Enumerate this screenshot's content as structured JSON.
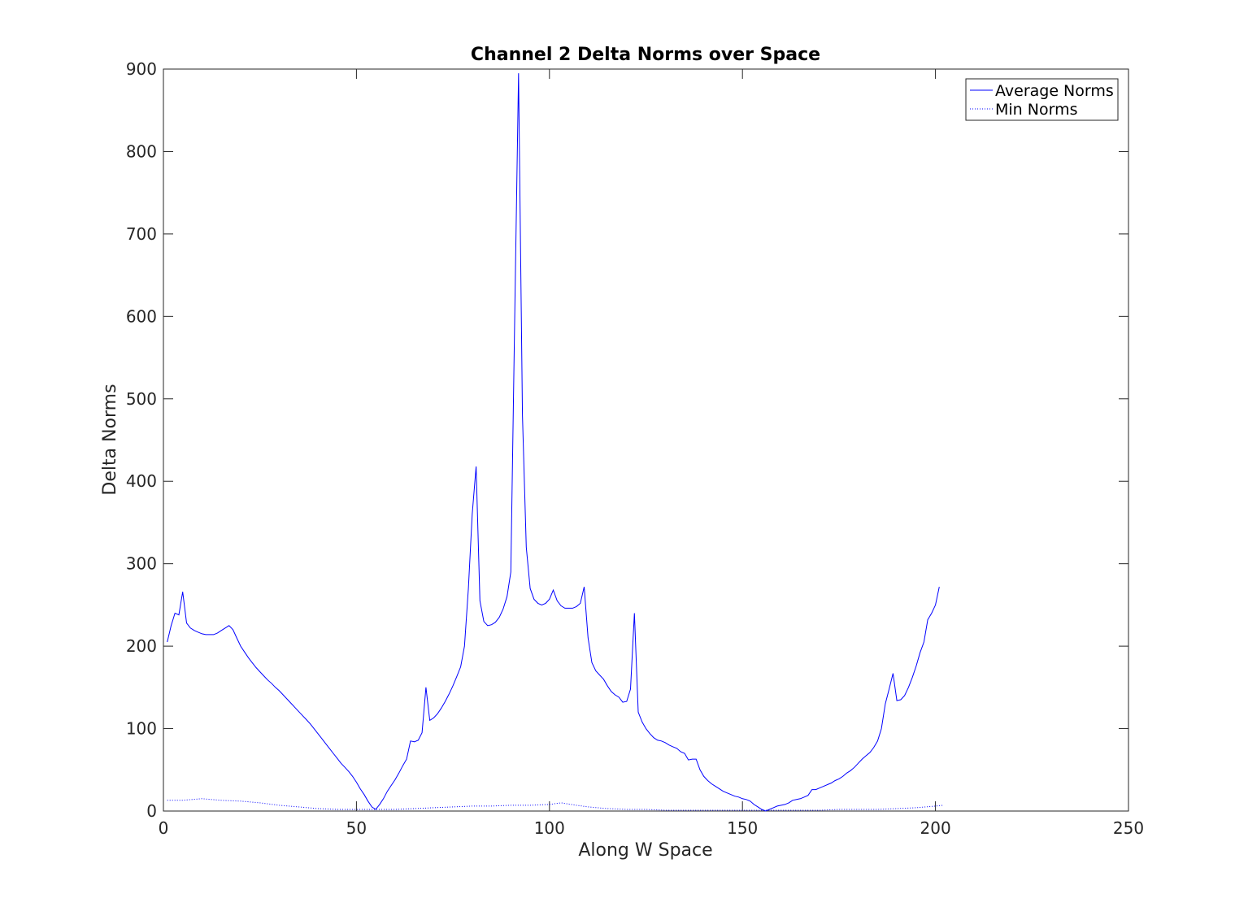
{
  "chart_data": {
    "type": "line",
    "title": "Channel 2 Delta Norms over Space",
    "xlabel": "Along W Space",
    "ylabel": "Delta Norms",
    "xlim": [
      0,
      250
    ],
    "ylim": [
      0,
      900
    ],
    "xticks": [
      0,
      50,
      100,
      150,
      200,
      250
    ],
    "yticks": [
      0,
      100,
      200,
      300,
      400,
      500,
      600,
      700,
      800,
      900
    ],
    "grid": false,
    "legend_position": "top-right",
    "series": [
      {
        "name": "Average Norms",
        "color": "#0000ff",
        "style": "solid",
        "points": [
          [
            1,
            205
          ],
          [
            2,
            225
          ],
          [
            3,
            240
          ],
          [
            4,
            238
          ],
          [
            5,
            266
          ],
          [
            6,
            228
          ],
          [
            7,
            222
          ],
          [
            8,
            219
          ],
          [
            9,
            217
          ],
          [
            10,
            215
          ],
          [
            11,
            214
          ],
          [
            12,
            214
          ],
          [
            13,
            214
          ],
          [
            14,
            216
          ],
          [
            15,
            219
          ],
          [
            16,
            222
          ],
          [
            17,
            225
          ],
          [
            18,
            220
          ],
          [
            19,
            210
          ],
          [
            20,
            200
          ],
          [
            21,
            193
          ],
          [
            22,
            186
          ],
          [
            23,
            180
          ],
          [
            24,
            174
          ],
          [
            25,
            169
          ],
          [
            26,
            164
          ],
          [
            27,
            159
          ],
          [
            28,
            155
          ],
          [
            29,
            150
          ],
          [
            30,
            146
          ],
          [
            31,
            141
          ],
          [
            32,
            136
          ],
          [
            33,
            131
          ],
          [
            34,
            126
          ],
          [
            35,
            121
          ],
          [
            36,
            116
          ],
          [
            37,
            111
          ],
          [
            38,
            106
          ],
          [
            39,
            100
          ],
          [
            40,
            94
          ],
          [
            41,
            88
          ],
          [
            42,
            82
          ],
          [
            43,
            76
          ],
          [
            44,
            70
          ],
          [
            45,
            64
          ],
          [
            46,
            58
          ],
          [
            47,
            53
          ],
          [
            48,
            48
          ],
          [
            49,
            42
          ],
          [
            50,
            35
          ],
          [
            51,
            27
          ],
          [
            52,
            20
          ],
          [
            53,
            12
          ],
          [
            54,
            5
          ],
          [
            55,
            2
          ],
          [
            56,
            8
          ],
          [
            57,
            15
          ],
          [
            58,
            24
          ],
          [
            59,
            31
          ],
          [
            60,
            38
          ],
          [
            61,
            46
          ],
          [
            62,
            55
          ],
          [
            63,
            63
          ],
          [
            64,
            85
          ],
          [
            65,
            84
          ],
          [
            66,
            86
          ],
          [
            67,
            95
          ],
          [
            68,
            150
          ],
          [
            69,
            110
          ],
          [
            70,
            113
          ],
          [
            71,
            118
          ],
          [
            72,
            125
          ],
          [
            73,
            133
          ],
          [
            74,
            142
          ],
          [
            75,
            152
          ],
          [
            76,
            163
          ],
          [
            77,
            175
          ],
          [
            78,
            200
          ],
          [
            79,
            270
          ],
          [
            80,
            360
          ],
          [
            81,
            418
          ],
          [
            82,
            255
          ],
          [
            83,
            230
          ],
          [
            84,
            225
          ],
          [
            85,
            226
          ],
          [
            86,
            229
          ],
          [
            87,
            235
          ],
          [
            88,
            245
          ],
          [
            89,
            260
          ],
          [
            90,
            290
          ],
          [
            91,
            600
          ],
          [
            92,
            895
          ],
          [
            93,
            480
          ],
          [
            94,
            320
          ],
          [
            95,
            270
          ],
          [
            96,
            257
          ],
          [
            97,
            252
          ],
          [
            98,
            250
          ],
          [
            99,
            252
          ],
          [
            100,
            257
          ],
          [
            101,
            268
          ],
          [
            102,
            255
          ],
          [
            103,
            249
          ],
          [
            104,
            246
          ],
          [
            105,
            246
          ],
          [
            106,
            246
          ],
          [
            107,
            248
          ],
          [
            108,
            252
          ],
          [
            109,
            272
          ],
          [
            110,
            210
          ],
          [
            111,
            180
          ],
          [
            112,
            170
          ],
          [
            113,
            165
          ],
          [
            114,
            160
          ],
          [
            115,
            152
          ],
          [
            116,
            145
          ],
          [
            117,
            141
          ],
          [
            118,
            138
          ],
          [
            119,
            132
          ],
          [
            120,
            133
          ],
          [
            121,
            148
          ],
          [
            122,
            240
          ],
          [
            123,
            120
          ],
          [
            124,
            108
          ],
          [
            125,
            100
          ],
          [
            126,
            94
          ],
          [
            127,
            89
          ],
          [
            128,
            86
          ],
          [
            129,
            85
          ],
          [
            130,
            83
          ],
          [
            131,
            80
          ],
          [
            132,
            78
          ],
          [
            133,
            76
          ],
          [
            134,
            72
          ],
          [
            135,
            70
          ],
          [
            136,
            62
          ],
          [
            137,
            63
          ],
          [
            138,
            63
          ],
          [
            139,
            50
          ],
          [
            140,
            42
          ],
          [
            141,
            37
          ],
          [
            142,
            33
          ],
          [
            143,
            30
          ],
          [
            144,
            27
          ],
          [
            145,
            24
          ],
          [
            146,
            22
          ],
          [
            147,
            20
          ],
          [
            148,
            18
          ],
          [
            149,
            17
          ],
          [
            150,
            15
          ],
          [
            151,
            14
          ],
          [
            152,
            12
          ],
          [
            153,
            8
          ],
          [
            154,
            5
          ],
          [
            155,
            2
          ],
          [
            156,
            0
          ],
          [
            157,
            2
          ],
          [
            158,
            4
          ],
          [
            159,
            6
          ],
          [
            160,
            7
          ],
          [
            161,
            8
          ],
          [
            162,
            10
          ],
          [
            163,
            13
          ],
          [
            164,
            14
          ],
          [
            165,
            15
          ],
          [
            166,
            17
          ],
          [
            167,
            19
          ],
          [
            168,
            26
          ],
          [
            169,
            26
          ],
          [
            170,
            28
          ],
          [
            171,
            30
          ],
          [
            172,
            32
          ],
          [
            173,
            34
          ],
          [
            174,
            37
          ],
          [
            175,
            39
          ],
          [
            176,
            42
          ],
          [
            177,
            46
          ],
          [
            178,
            49
          ],
          [
            179,
            53
          ],
          [
            180,
            58
          ],
          [
            181,
            63
          ],
          [
            182,
            67
          ],
          [
            183,
            71
          ],
          [
            184,
            77
          ],
          [
            185,
            85
          ],
          [
            186,
            100
          ],
          [
            187,
            130
          ],
          [
            188,
            148
          ],
          [
            189,
            167
          ],
          [
            190,
            134
          ],
          [
            191,
            135
          ],
          [
            192,
            140
          ],
          [
            193,
            150
          ],
          [
            194,
            162
          ],
          [
            195,
            176
          ],
          [
            196,
            192
          ],
          [
            197,
            205
          ],
          [
            198,
            232
          ],
          [
            199,
            240
          ],
          [
            200,
            250
          ],
          [
            201,
            272
          ]
        ]
      },
      {
        "name": "Min Norms",
        "color": "#0000ff",
        "style": "dotted",
        "points": [
          [
            1,
            13
          ],
          [
            5,
            13
          ],
          [
            10,
            15
          ],
          [
            15,
            13
          ],
          [
            20,
            12
          ],
          [
            25,
            10
          ],
          [
            30,
            7
          ],
          [
            35,
            5
          ],
          [
            40,
            3
          ],
          [
            45,
            2
          ],
          [
            50,
            2
          ],
          [
            55,
            2
          ],
          [
            60,
            2
          ],
          [
            65,
            3
          ],
          [
            70,
            4
          ],
          [
            75,
            5
          ],
          [
            80,
            6
          ],
          [
            85,
            6
          ],
          [
            90,
            7
          ],
          [
            95,
            7
          ],
          [
            100,
            8
          ],
          [
            103,
            10
          ],
          [
            107,
            7
          ],
          [
            110,
            5
          ],
          [
            115,
            3
          ],
          [
            120,
            2
          ],
          [
            125,
            2
          ],
          [
            130,
            1
          ],
          [
            135,
            1
          ],
          [
            140,
            1
          ],
          [
            143,
            1
          ],
          [
            165,
            1
          ],
          [
            170,
            1
          ],
          [
            175,
            2
          ],
          [
            180,
            2
          ],
          [
            185,
            2
          ],
          [
            190,
            3
          ],
          [
            195,
            4
          ],
          [
            200,
            6
          ],
          [
            202,
            7
          ]
        ]
      }
    ]
  }
}
